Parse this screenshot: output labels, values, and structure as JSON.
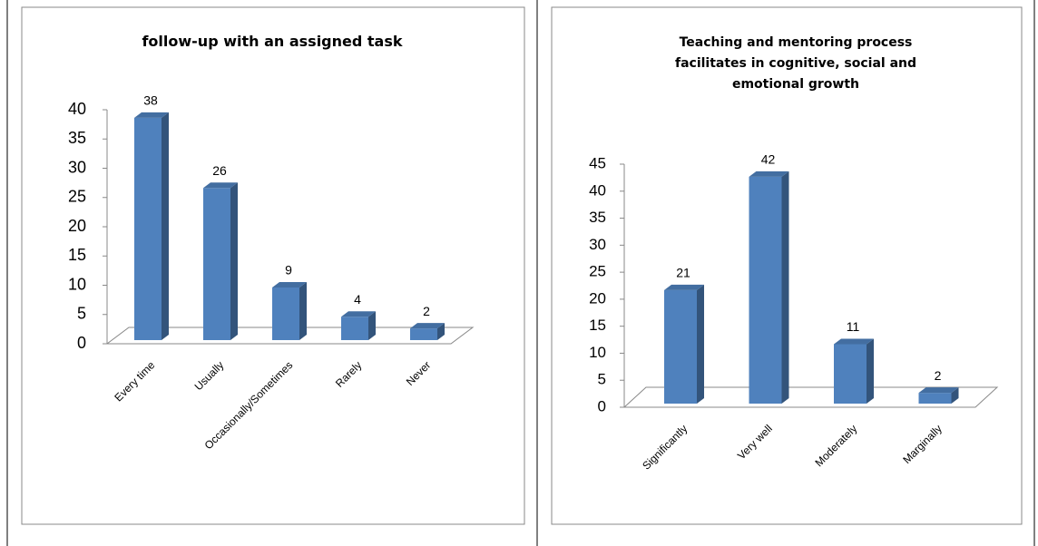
{
  "chart_data": [
    {
      "type": "bar",
      "title": "follow-up with an assigned task",
      "categories": [
        "Every time",
        "Usually",
        "Occasionally/Sometimes",
        "Rarely",
        "Never"
      ],
      "values": [
        38,
        26,
        9,
        4,
        2
      ],
      "color": "#4f81bd",
      "ylim": [
        0,
        40
      ],
      "yticks": [
        0,
        5,
        10,
        15,
        20,
        25,
        30,
        35,
        40
      ]
    },
    {
      "type": "bar",
      "title": "Teaching and mentoring process facilitates in cognitive, social and emotional growth",
      "categories": [
        "Significantly",
        "Very well",
        "Moderately",
        "Marginally"
      ],
      "values": [
        21,
        42,
        11,
        2
      ],
      "color": "#4f81bd",
      "ylim": [
        0,
        45
      ],
      "yticks": [
        0,
        5,
        10,
        15,
        20,
        25,
        30,
        35,
        40,
        45
      ]
    }
  ]
}
